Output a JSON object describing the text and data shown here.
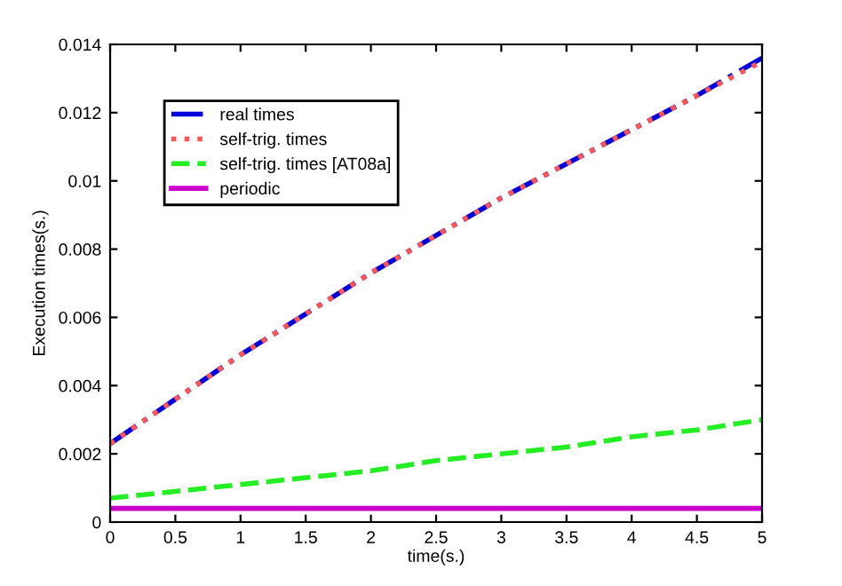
{
  "chart_data": {
    "type": "line",
    "xlabel": "time(s.)",
    "ylabel": "Execution times(s.)",
    "x": [
      0,
      0.5,
      1,
      1.5,
      2,
      2.5,
      3,
      3.5,
      4,
      4.5,
      5
    ],
    "series": [
      {
        "name": "real times",
        "color": "#0000dd",
        "line_style": "dashdot",
        "values": [
          0.0023,
          0.0036,
          0.0049,
          0.0061,
          0.0073,
          0.0084,
          0.0095,
          0.0105,
          0.0115,
          0.0125,
          0.0136
        ]
      },
      {
        "name": "self-trig. times",
        "color": "#ff5555",
        "line_style": "dotted",
        "values": [
          0.0023,
          0.0036,
          0.0049,
          0.0061,
          0.0073,
          0.0084,
          0.0095,
          0.0105,
          0.0115,
          0.0125,
          0.0135
        ]
      },
      {
        "name": "self-trig. times [AT08a]",
        "color": "#22ee22",
        "line_style": "dashed",
        "values": [
          0.0007,
          0.0009,
          0.0011,
          0.0013,
          0.0015,
          0.0018,
          0.002,
          0.0022,
          0.0025,
          0.0027,
          0.003
        ]
      },
      {
        "name": "periodic",
        "color": "#cc00cc",
        "line_style": "solid",
        "values": [
          0.0004,
          0.0004,
          0.0004,
          0.0004,
          0.0004,
          0.0004,
          0.0004,
          0.0004,
          0.0004,
          0.0004,
          0.0004
        ]
      }
    ],
    "xlim": [
      0,
      5
    ],
    "ylim": [
      0,
      0.014
    ],
    "xticks": [
      0,
      0.5,
      1,
      1.5,
      2,
      2.5,
      3,
      3.5,
      4,
      4.5,
      5
    ],
    "yticks": [
      0,
      0.002,
      0.004,
      0.006,
      0.008,
      0.01,
      0.012,
      0.014
    ],
    "grid": false,
    "legend": "upper left",
    "marker": "none"
  }
}
